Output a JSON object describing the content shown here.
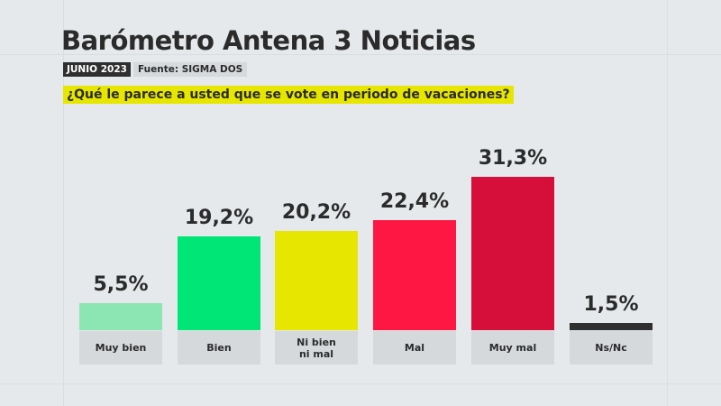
{
  "header": {
    "title": "Barómetro Antena 3 Noticias",
    "date": "JUNIO 2023",
    "source": "Fuente: SIGMA DOS",
    "question": "¿Qué le parece a usted que se vote en periodo de vacaciones?"
  },
  "chart_data": {
    "type": "bar",
    "title": "¿Qué le parece a usted que se vote en periodo de vacaciones?",
    "categories": [
      "Muy bien",
      "Bien",
      "Ni bien\nni mal",
      "Mal",
      "Muy mal",
      "Ns/Nc"
    ],
    "values": [
      5.5,
      19.2,
      20.2,
      22.4,
      31.3,
      1.5
    ],
    "value_labels": [
      "5,5%",
      "19,2%",
      "20,2%",
      "22,4%",
      "31,3%",
      "1,5%"
    ],
    "colors": [
      "#8ce6b4",
      "#00e676",
      "#e6e600",
      "#ff1744",
      "#d50f3a",
      "#2f2f2f"
    ],
    "unit": "%",
    "ylim": [
      0,
      35
    ],
    "grid": false,
    "xlabel": "",
    "ylabel": ""
  }
}
